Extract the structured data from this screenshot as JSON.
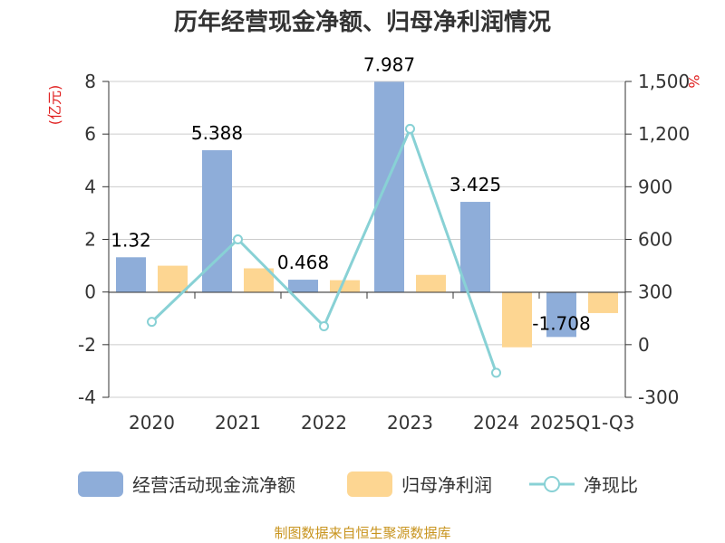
{
  "chart_data": {
    "type": "bar",
    "title": "历年经营现金净额、归母净利润情况",
    "categories": [
      "2020",
      "2021",
      "2022",
      "2023",
      "2024",
      "2025Q1-Q3"
    ],
    "series": [
      {
        "name": "经营活动现金流净额",
        "type": "bar",
        "axis": "left",
        "color": "#8eadd9",
        "values": [
          1.32,
          5.388,
          0.468,
          7.987,
          3.425,
          -1.708
        ],
        "labels": [
          "1.32",
          "5.388",
          "0.468",
          "7.987",
          "3.425",
          "-1.708"
        ]
      },
      {
        "name": "归母净利润",
        "type": "bar",
        "axis": "left",
        "color": "#fdd692",
        "values": [
          1.0,
          0.9,
          0.45,
          0.65,
          -2.1,
          -0.8
        ]
      },
      {
        "name": "净现比",
        "type": "line",
        "axis": "right",
        "color": "#88d1d5",
        "values": [
          130,
          600,
          105,
          1230,
          -160,
          null
        ]
      }
    ],
    "y_left": {
      "unit": "(亿元)",
      "ylim": [
        -4,
        8
      ],
      "ticks": [
        -4,
        -2,
        0,
        2,
        4,
        6,
        8
      ],
      "tick_labels": [
        "-4",
        "-2",
        "0",
        "2",
        "4",
        "6",
        "8"
      ]
    },
    "y_right": {
      "unit": "%",
      "ylim": [
        -300,
        1500
      ],
      "ticks": [
        -300,
        0,
        300,
        600,
        900,
        1200,
        1500
      ],
      "tick_labels": [
        "-300",
        "0",
        "300",
        "600",
        "900",
        "1,200",
        "1,500"
      ]
    },
    "grid": true,
    "legend_position": "bottom"
  },
  "footer": {
    "source": "制图数据来自恒生聚源数据库"
  },
  "colors": {
    "unit_text": "#e02020",
    "source_text": "#c8941e",
    "grid": "#cccccc",
    "axis": "#333333"
  }
}
